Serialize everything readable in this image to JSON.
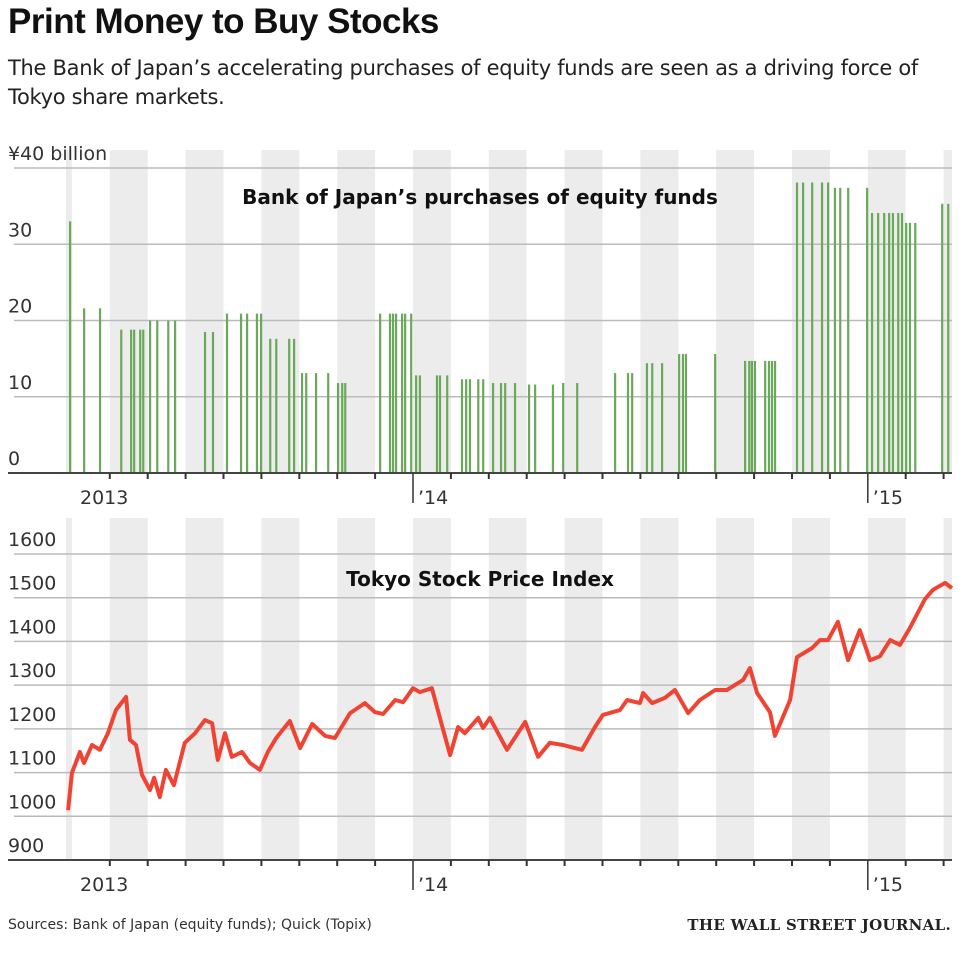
{
  "header": {
    "title": "Print Money to Buy Stocks",
    "subtitle": "The Bank of Japan’s accelerating purchases of equity funds are seen as a driving force of Tokyo share markets."
  },
  "footer": {
    "sources": "Sources: Bank of Japan (equity funds); Quick (Topix)",
    "credit": "THE WALL STREET JOURNAL."
  },
  "colors": {
    "bars": "#6aa95a",
    "line": "#ef4433",
    "band": "#ececec",
    "grid": "#bbbbbb"
  },
  "chart_data": [
    {
      "type": "bar",
      "title": "Bank of Japan’s purchases of equity funds",
      "ylabel": "¥40 billion",
      "x_unit": "months since Jan 2014",
      "ylim": [
        0,
        40
      ],
      "yticks": [
        "0",
        "10",
        "20",
        "30"
      ],
      "yticks_values": [
        0,
        10,
        20,
        30
      ],
      "top_label": "¥40 billion",
      "xtick_labels": [
        {
          "t": -8,
          "label": "2013"
        },
        {
          "t": 0,
          "label": "’14"
        },
        {
          "t": 12,
          "label": "’15"
        }
      ],
      "xlim": [
        -9.15,
        14.3
      ],
      "grid": true,
      "points": [
        [
          -9.05,
          33
        ],
        [
          -8.68,
          21.6
        ],
        [
          -8.26,
          21.6
        ],
        [
          -7.7,
          18.8
        ],
        [
          -7.44,
          18.8
        ],
        [
          -7.36,
          18.8
        ],
        [
          -7.2,
          18.8
        ],
        [
          -7.12,
          18.8
        ],
        [
          -6.94,
          20
        ],
        [
          -6.75,
          20
        ],
        [
          -6.46,
          20
        ],
        [
          -6.28,
          20
        ],
        [
          -5.49,
          18.5
        ],
        [
          -5.28,
          18.5
        ],
        [
          -4.91,
          20.9
        ],
        [
          -4.54,
          20.9
        ],
        [
          -4.38,
          20.9
        ],
        [
          -4.12,
          20.9
        ],
        [
          -4.01,
          20.9
        ],
        [
          -3.77,
          17.6
        ],
        [
          -3.61,
          17.6
        ],
        [
          -3.27,
          17.6
        ],
        [
          -3.14,
          17.6
        ],
        [
          -2.93,
          13.1
        ],
        [
          -2.82,
          13.1
        ],
        [
          -2.56,
          13.1
        ],
        [
          -2.24,
          13.1
        ],
        [
          -1.98,
          11.8
        ],
        [
          -1.87,
          11.8
        ],
        [
          -1.79,
          11.8
        ],
        [
          -0.87,
          20.9
        ],
        [
          -0.61,
          20.9
        ],
        [
          -0.53,
          20.9
        ],
        [
          -0.45,
          20.9
        ],
        [
          -0.29,
          20.9
        ],
        [
          -0.21,
          20.9
        ],
        [
          -0.05,
          20.9
        ],
        [
          0.08,
          12.8
        ],
        [
          0.18,
          12.8
        ],
        [
          0.63,
          12.8
        ],
        [
          0.71,
          12.8
        ],
        [
          0.9,
          12.8
        ],
        [
          1.29,
          12.3
        ],
        [
          1.4,
          12.3
        ],
        [
          1.5,
          12.3
        ],
        [
          1.72,
          12.3
        ],
        [
          1.85,
          12.3
        ],
        [
          2.11,
          11.8
        ],
        [
          2.32,
          11.8
        ],
        [
          2.43,
          11.8
        ],
        [
          2.69,
          11.8
        ],
        [
          3.06,
          11.6
        ],
        [
          3.22,
          11.6
        ],
        [
          3.69,
          11.6
        ],
        [
          3.96,
          11.8
        ],
        [
          4.33,
          11.8
        ],
        [
          5.33,
          13.1
        ],
        [
          5.67,
          13.1
        ],
        [
          5.78,
          13.1
        ],
        [
          6.17,
          14.4
        ],
        [
          6.31,
          14.4
        ],
        [
          6.57,
          14.4
        ],
        [
          7.02,
          15.6
        ],
        [
          7.12,
          15.6
        ],
        [
          7.2,
          15.6
        ],
        [
          7.97,
          15.6
        ],
        [
          8.76,
          14.7
        ],
        [
          8.87,
          14.7
        ],
        [
          8.94,
          14.7
        ],
        [
          9.02,
          14.7
        ],
        [
          9.29,
          14.7
        ],
        [
          9.39,
          14.7
        ],
        [
          9.47,
          14.7
        ],
        [
          9.55,
          14.7
        ],
        [
          10.13,
          38.1
        ],
        [
          10.29,
          38.1
        ],
        [
          10.53,
          38.1
        ],
        [
          10.79,
          38.1
        ],
        [
          10.95,
          38.1
        ],
        [
          11.13,
          37.4
        ],
        [
          11.27,
          37.4
        ],
        [
          11.48,
          37.4
        ],
        [
          11.98,
          37.4
        ],
        [
          12.11,
          34.1
        ],
        [
          12.27,
          34.1
        ],
        [
          12.43,
          34.1
        ],
        [
          12.56,
          34.1
        ],
        [
          12.66,
          34.1
        ],
        [
          12.8,
          34.1
        ],
        [
          12.9,
          34.1
        ],
        [
          13.01,
          32.8
        ],
        [
          13.11,
          32.8
        ],
        [
          13.25,
          32.8
        ],
        [
          13.96,
          35.3
        ],
        [
          14.12,
          35.3
        ]
      ]
    },
    {
      "type": "line",
      "title": "Tokyo Stock Price Index",
      "series_name": "Topix",
      "x_unit": "months since Jan 2014",
      "ylim": [
        900,
        1600
      ],
      "yticks": [
        "900",
        "1000",
        "1100",
        "1200",
        "1300",
        "1400",
        "1500",
        "1600"
      ],
      "yticks_values": [
        900,
        1000,
        1100,
        1200,
        1300,
        1400,
        1500,
        1600
      ],
      "xtick_labels": [
        {
          "t": -8,
          "label": "2013"
        },
        {
          "t": 0,
          "label": "’14"
        },
        {
          "t": 12,
          "label": "’15"
        }
      ],
      "xlim": [
        -9.15,
        14.3
      ],
      "grid": true,
      "points": [
        [
          -9.1,
          1014
        ],
        [
          -9.0,
          1099
        ],
        [
          -8.79,
          1147
        ],
        [
          -8.68,
          1122
        ],
        [
          -8.47,
          1163
        ],
        [
          -8.26,
          1152
        ],
        [
          -8.05,
          1190
        ],
        [
          -7.84,
          1243
        ],
        [
          -7.57,
          1273
        ],
        [
          -7.47,
          1175
        ],
        [
          -7.31,
          1163
        ],
        [
          -7.15,
          1095
        ],
        [
          -6.94,
          1060
        ],
        [
          -6.83,
          1088
        ],
        [
          -6.68,
          1044
        ],
        [
          -6.52,
          1106
        ],
        [
          -6.31,
          1071
        ],
        [
          -6.02,
          1168
        ],
        [
          -5.75,
          1190
        ],
        [
          -5.49,
          1220
        ],
        [
          -5.3,
          1213
        ],
        [
          -5.15,
          1129
        ],
        [
          -4.96,
          1190
        ],
        [
          -4.78,
          1136
        ],
        [
          -4.51,
          1147
        ],
        [
          -4.3,
          1122
        ],
        [
          -4.04,
          1106
        ],
        [
          -3.83,
          1147
        ],
        [
          -3.61,
          1179
        ],
        [
          -3.25,
          1218
        ],
        [
          -2.98,
          1156
        ],
        [
          -2.66,
          1211
        ],
        [
          -2.32,
          1184
        ],
        [
          -2.06,
          1179
        ],
        [
          -1.66,
          1236
        ],
        [
          -1.27,
          1259
        ],
        [
          -1.0,
          1238
        ],
        [
          -0.79,
          1234
        ],
        [
          -0.47,
          1266
        ],
        [
          -0.26,
          1261
        ],
        [
          0,
          1293
        ],
        [
          0.18,
          1284
        ],
        [
          0.5,
          1293
        ],
        [
          0.71,
          1225
        ],
        [
          0.98,
          1140
        ],
        [
          1.19,
          1204
        ],
        [
          1.37,
          1190
        ],
        [
          1.72,
          1225
        ],
        [
          1.85,
          1202
        ],
        [
          2.03,
          1225
        ],
        [
          2.48,
          1152
        ],
        [
          2.96,
          1216
        ],
        [
          3.3,
          1136
        ],
        [
          3.61,
          1168
        ],
        [
          3.96,
          1163
        ],
        [
          4.14,
          1159
        ],
        [
          4.46,
          1152
        ],
        [
          4.8,
          1204
        ],
        [
          5.01,
          1232
        ],
        [
          5.46,
          1243
        ],
        [
          5.65,
          1266
        ],
        [
          5.99,
          1259
        ],
        [
          6.07,
          1282
        ],
        [
          6.31,
          1259
        ],
        [
          6.65,
          1271
        ],
        [
          6.91,
          1289
        ],
        [
          7.26,
          1236
        ],
        [
          7.57,
          1266
        ],
        [
          7.97,
          1289
        ],
        [
          8.28,
          1289
        ],
        [
          8.71,
          1312
        ],
        [
          8.89,
          1339
        ],
        [
          9.08,
          1282
        ],
        [
          9.42,
          1238
        ],
        [
          9.55,
          1184
        ],
        [
          9.95,
          1266
        ],
        [
          10.13,
          1364
        ],
        [
          10.53,
          1385
        ],
        [
          10.74,
          1403
        ],
        [
          10.95,
          1403
        ],
        [
          11.21,
          1445
        ],
        [
          11.48,
          1357
        ],
        [
          11.79,
          1426
        ],
        [
          12.06,
          1357
        ],
        [
          12.32,
          1366
        ],
        [
          12.59,
          1403
        ],
        [
          12.85,
          1392
        ],
        [
          13.11,
          1431
        ],
        [
          13.51,
          1497
        ],
        [
          13.72,
          1518
        ],
        [
          14.04,
          1534
        ],
        [
          14.22,
          1522
        ]
      ]
    }
  ]
}
